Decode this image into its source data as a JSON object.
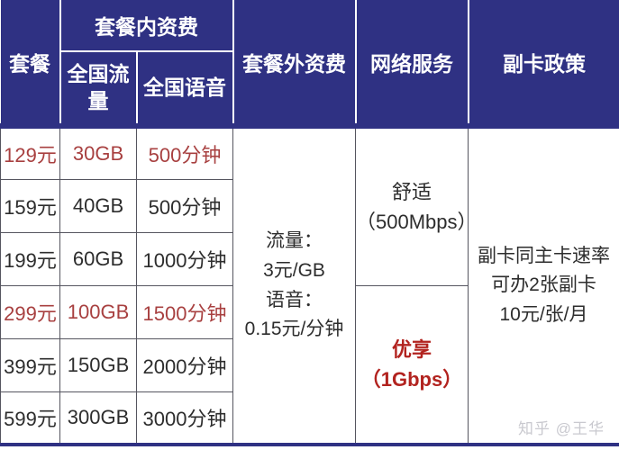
{
  "colors": {
    "header_bg": "#2f3183",
    "highlight_red": "#a84040",
    "premium_red": "#b2231f",
    "text_dark": "#2d2d2d",
    "grid_line": "#55555f",
    "watermark_gray": "#c9c9cf"
  },
  "header": {
    "plan": "套餐",
    "in_plan_group": "套餐内资费",
    "data_sub": "全国流量",
    "voice_sub": "全国语音",
    "out_plan": "套餐外资费",
    "network": "网络服务",
    "subcard": "副卡政策"
  },
  "rows": [
    {
      "price": "129元",
      "data": "30GB",
      "voice": "500分钟",
      "highlight": true
    },
    {
      "price": "159元",
      "data": "40GB",
      "voice": "500分钟",
      "highlight": false
    },
    {
      "price": "199元",
      "data": "60GB",
      "voice": "1000分钟",
      "highlight": false
    },
    {
      "price": "299元",
      "data": "100GB",
      "voice": "1500分钟",
      "highlight": true
    },
    {
      "price": "399元",
      "data": "150GB",
      "voice": "2000分钟",
      "highlight": false
    },
    {
      "price": "599元",
      "data": "300GB",
      "voice": "3000分钟",
      "highlight": false
    }
  ],
  "out_plan_cell": {
    "lines": [
      "流量：",
      "3元/GB",
      "语音：",
      "0.15元/分钟"
    ]
  },
  "network_cells": [
    {
      "tier": "舒适",
      "speed": "（500Mbps）",
      "highlight": false
    },
    {
      "tier": "优享",
      "speed": "（1Gbps）",
      "highlight": true
    }
  ],
  "subcard_cell": {
    "lines": [
      "副卡同主卡速率",
      "可办2张副卡",
      "10元/张/月"
    ]
  },
  "watermark": "知乎 @王华"
}
